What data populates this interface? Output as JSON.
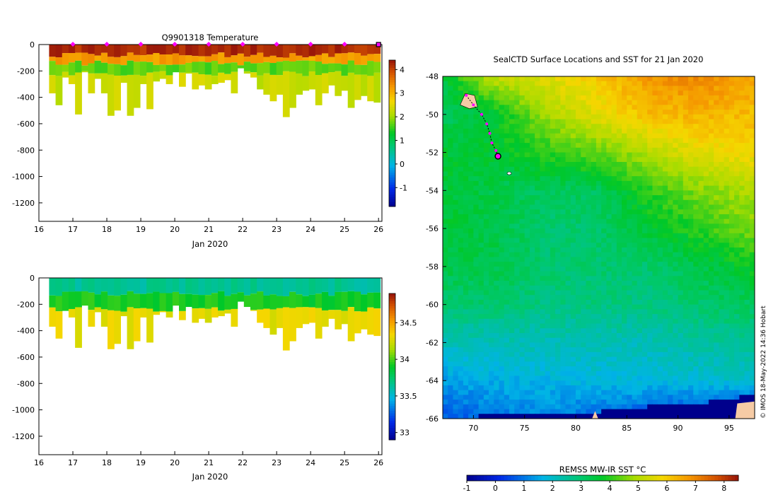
{
  "chart_data": [
    {
      "type": "heatmap",
      "title": "Q9901318  Temperature",
      "xlabel": "Jan 2020",
      "x_ticks": [
        16,
        17,
        18,
        19,
        20,
        21,
        22,
        23,
        24,
        25,
        26
      ],
      "xlim": [
        16,
        26.1
      ],
      "y_ticks": [
        0,
        -200,
        -400,
        -600,
        -800,
        -1000,
        -1200
      ],
      "ylim": [
        -1340,
        0
      ],
      "colorbar": {
        "ticks": [
          -1,
          0,
          1,
          2,
          3,
          4
        ],
        "range": [
          -1.8,
          4.4
        ]
      },
      "surface_markers": [
        17,
        18,
        19,
        20,
        21,
        22,
        23,
        24,
        25
      ],
      "profile_start": 16.3,
      "profile_max_depths": [
        370,
        460,
        250,
        300,
        530,
        210,
        370,
        260,
        370,
        540,
        500,
        290,
        540,
        480,
        300,
        490,
        280,
        260,
        300,
        210,
        320,
        220,
        340,
        310,
        340,
        300,
        290,
        270,
        370,
        180,
        220,
        250,
        340,
        380,
        430,
        380,
        550,
        480,
        380,
        350,
        340,
        460,
        370,
        310,
        390,
        350,
        480,
        420,
        390,
        430,
        440
      ],
      "layers": [
        {
          "name": "surface",
          "bottom": 80,
          "value": 4.2
        },
        {
          "name": "upper",
          "bottom": 140,
          "value": 3.2
        },
        {
          "name": "mid",
          "bottom": 220,
          "value": 1.7
        },
        {
          "name": "deep",
          "bottom": 9999,
          "value": 2.3
        }
      ]
    },
    {
      "type": "heatmap",
      "title": "",
      "xlabel": "Jan 2020",
      "x_ticks": [
        16,
        17,
        18,
        19,
        20,
        21,
        22,
        23,
        24,
        25,
        26
      ],
      "xlim": [
        16,
        26.1
      ],
      "y_ticks": [
        0,
        -200,
        -400,
        -600,
        -800,
        -1000,
        -1200
      ],
      "ylim": [
        -1340,
        0
      ],
      "colorbar": {
        "ticks": [
          33,
          33.5,
          34,
          34.5
        ],
        "range": [
          32.9,
          34.9
        ]
      },
      "profile_start": 16.3,
      "profile_max_depths": [
        370,
        460,
        250,
        300,
        530,
        210,
        370,
        260,
        370,
        540,
        500,
        290,
        540,
        480,
        300,
        490,
        280,
        260,
        300,
        210,
        320,
        220,
        340,
        310,
        340,
        300,
        290,
        270,
        370,
        180,
        220,
        250,
        340,
        380,
        430,
        380,
        550,
        480,
        380,
        350,
        340,
        460,
        370,
        310,
        390,
        350,
        480,
        420,
        390,
        430,
        440
      ],
      "layers": [
        {
          "name": "surface",
          "bottom": 120,
          "value": 33.65
        },
        {
          "name": "mid",
          "bottom": 240,
          "value": 33.92
        },
        {
          "name": "deep",
          "bottom": 9999,
          "value": 34.3
        }
      ]
    },
    {
      "type": "map",
      "title": "SealCTD Surface Locations and SST for 21 Jan 2020",
      "x_ticks": [
        70,
        75,
        80,
        85,
        90,
        95
      ],
      "xlim": [
        67,
        97.5
      ],
      "y_ticks": [
        -48,
        -50,
        -52,
        -54,
        -56,
        -58,
        -60,
        -62,
        -64,
        -66
      ],
      "ylim": [
        -66,
        -48
      ],
      "colorbar_label": "REMSS MW-IR SST °C",
      "colorbar_ticks": [
        -1,
        0,
        1,
        2,
        3,
        4,
        5,
        6,
        7,
        8
      ],
      "colorbar_range": [
        -1,
        8.5
      ],
      "sst_grid_lon_nodes": [
        67,
        72,
        77,
        82,
        87,
        92,
        97.5
      ],
      "sst_grid_lat_nodes": [
        -48,
        -50,
        -52,
        -54,
        -56,
        -58,
        -60,
        -62,
        -64,
        -66
      ],
      "sst_grid": [
        [
          3.5,
          5.2,
          5.6,
          6.0,
          6.8,
          7.0,
          6.6
        ],
        [
          3.2,
          3.6,
          4.8,
          5.6,
          6.2,
          6.4,
          6.2
        ],
        [
          3.6,
          3.6,
          4.0,
          4.4,
          5.0,
          5.6,
          5.8
        ],
        [
          3.6,
          3.4,
          3.2,
          3.2,
          4.0,
          4.6,
          5.0
        ],
        [
          3.6,
          3.4,
          3.0,
          3.0,
          3.6,
          4.0,
          4.6
        ],
        [
          3.4,
          3.4,
          3.0,
          3.0,
          3.0,
          3.4,
          3.8
        ],
        [
          3.0,
          3.0,
          2.8,
          2.8,
          2.8,
          3.0,
          3.2
        ],
        [
          2.2,
          2.2,
          2.2,
          2.2,
          2.2,
          2.4,
          2.6
        ],
        [
          1.4,
          1.6,
          1.7,
          1.8,
          1.8,
          1.9,
          2.0
        ],
        [
          0.6,
          1.0,
          1.2,
          0.8,
          0.5,
          0.2,
          -0.2
        ]
      ],
      "ice_edge_lats": [
        -65.9,
        -65.8,
        -65.6,
        -65.4,
        -65.3,
        -65.2,
        -65.0,
        -64.7
      ],
      "ice_edge_lons": [
        67,
        80,
        83,
        86,
        89,
        92,
        95,
        97.5
      ],
      "ice_value": -1.5,
      "land_color": "#f6cba5",
      "track": [
        {
          "lon": 69.3,
          "lat": -49.0
        },
        {
          "lon": 70.0,
          "lat": -49.5
        },
        {
          "lon": 70.8,
          "lat": -50.0
        },
        {
          "lon": 71.3,
          "lat": -50.5
        },
        {
          "lon": 71.6,
          "lat": -51.0
        },
        {
          "lon": 71.8,
          "lat": -51.5
        },
        {
          "lon": 72.2,
          "lat": -51.9
        },
        {
          "lon": 72.4,
          "lat": -52.2
        }
      ],
      "current_position": {
        "lon": 72.4,
        "lat": -52.2
      }
    }
  ],
  "credit": "© IMOS 18-May-2022 14:36 Hobart",
  "colors": {
    "marker": "#ff00ff",
    "axis": "#000000"
  }
}
